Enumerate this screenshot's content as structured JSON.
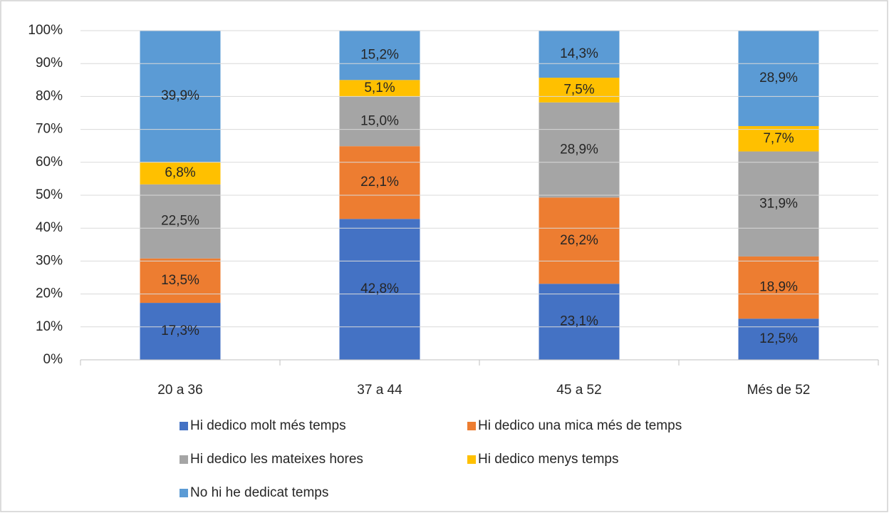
{
  "chart_data": {
    "type": "stacked_bar_percent",
    "categories": [
      "20 a 36",
      "37 a 44",
      "45 a 52",
      "Més de 52"
    ],
    "series": [
      {
        "name": "Hi dedico molt més temps",
        "color": "#4472c4",
        "values": [
          17.3,
          42.8,
          23.1,
          12.5
        ],
        "value_labels": [
          "17,3%",
          "42,8%",
          "23,1%",
          "12,5%"
        ]
      },
      {
        "name": "Hi dedico una mica més de temps",
        "color": "#ed7d31",
        "values": [
          13.5,
          22.1,
          26.2,
          18.9
        ],
        "value_labels": [
          "13,5%",
          "22,1%",
          "26,2%",
          "18,9%"
        ]
      },
      {
        "name": "Hi dedico les mateixes hores",
        "color": "#a5a5a5",
        "values": [
          22.5,
          15.0,
          28.9,
          31.9
        ],
        "value_labels": [
          "22,5%",
          "15,0%",
          "28,9%",
          "31,9%"
        ]
      },
      {
        "name": "Hi dedico menys temps",
        "color": "#ffc000",
        "values": [
          6.8,
          5.1,
          7.5,
          7.7
        ],
        "value_labels": [
          "6,8%",
          "5,1%",
          "7,5%",
          "7,7%"
        ]
      },
      {
        "name": "No hi he dedicat temps",
        "color": "#5b9bd5",
        "values": [
          39.9,
          15.2,
          14.3,
          28.9
        ],
        "value_labels": [
          "39,9%",
          "15,2%",
          "14,3%",
          "28,9%"
        ]
      }
    ],
    "ylim": [
      0,
      100
    ],
    "yticks": [
      {
        "value": 0,
        "label": "0%"
      },
      {
        "value": 10,
        "label": "10%"
      },
      {
        "value": 20,
        "label": "20%"
      },
      {
        "value": 30,
        "label": "30%"
      },
      {
        "value": 40,
        "label": "40%"
      },
      {
        "value": 50,
        "label": "50%"
      },
      {
        "value": 60,
        "label": "60%"
      },
      {
        "value": 70,
        "label": "70%"
      },
      {
        "value": 80,
        "label": "80%"
      },
      {
        "value": 90,
        "label": "90%"
      },
      {
        "value": 100,
        "label": "100%"
      }
    ],
    "grid": true,
    "legend": "bottom"
  }
}
